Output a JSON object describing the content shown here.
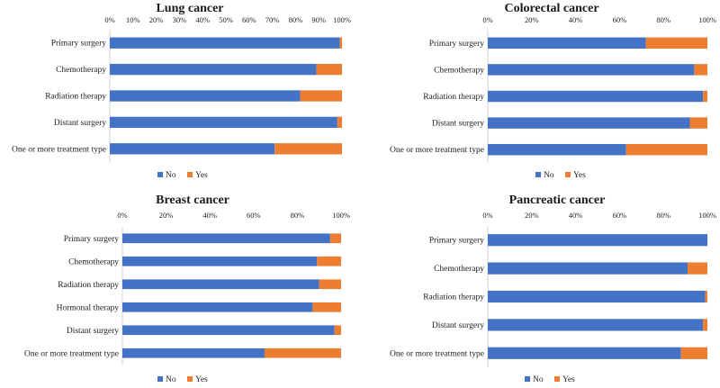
{
  "colors": {
    "no": "#4472C4",
    "yes": "#ED7D31"
  },
  "chart_data": [
    {
      "type": "bar",
      "orientation": "horizontal",
      "stacked": "percent",
      "title": "Lung cancer",
      "xlim": [
        0,
        100
      ],
      "xticks": [
        "0%",
        "10%",
        "20%",
        "30%",
        "40%",
        "50%",
        "60%",
        "70%",
        "80%",
        "90%",
        "100%"
      ],
      "categories": [
        "Primary surgery",
        "Chemotherapy",
        "Radiation therapy",
        "Distant surgery",
        "One or more treatment type"
      ],
      "series": [
        {
          "name": "No",
          "values": [
            99,
            89,
            82,
            98,
            71
          ]
        },
        {
          "name": "Yes",
          "values": [
            1,
            11,
            18,
            2,
            29
          ]
        }
      ],
      "legend": "bottom"
    },
    {
      "type": "bar",
      "orientation": "horizontal",
      "stacked": "percent",
      "title": "Colorectal cancer",
      "xlim": [
        0,
        100
      ],
      "xticks": [
        "0%",
        "20%",
        "40%",
        "60%",
        "80%",
        "100%"
      ],
      "categories": [
        "Primary surgery",
        "Chemotherapy",
        "Radiation therapy",
        "Distant surgery",
        "One or more treatment type"
      ],
      "series": [
        {
          "name": "No",
          "values": [
            72,
            94,
            98,
            92,
            63
          ]
        },
        {
          "name": "Yes",
          "values": [
            28,
            6,
            2,
            8,
            37
          ]
        }
      ],
      "legend": "bottom"
    },
    {
      "type": "bar",
      "orientation": "horizontal",
      "stacked": "percent",
      "title": "Breast cancer",
      "xlim": [
        0,
        100
      ],
      "xticks": [
        "0%",
        "20%",
        "40%",
        "60%",
        "80%",
        "100%"
      ],
      "categories": [
        "Primary surgery",
        "Chemotherapy",
        "Radiation therapy",
        "Hormonal therapy",
        "Distant surgery",
        "One or more treatment type"
      ],
      "series": [
        {
          "name": "No",
          "values": [
            95,
            89,
            90,
            87,
            97,
            65
          ]
        },
        {
          "name": "Yes",
          "values": [
            5,
            11,
            10,
            13,
            3,
            35
          ]
        }
      ],
      "legend": "bottom"
    },
    {
      "type": "bar",
      "orientation": "horizontal",
      "stacked": "percent",
      "title": "Pancreatic cancer",
      "xlim": [
        0,
        100
      ],
      "xticks": [
        "0%",
        "20%",
        "40%",
        "60%",
        "80%",
        "100%"
      ],
      "categories": [
        "Primary surgery",
        "Chemotherapy",
        "Radiation therapy",
        "Distant surgery",
        "One or more treatment type"
      ],
      "series": [
        {
          "name": "No",
          "values": [
            100,
            91,
            99,
            98,
            88
          ]
        },
        {
          "name": "Yes",
          "values": [
            0,
            9,
            1,
            2,
            12
          ]
        }
      ],
      "legend": "bottom"
    }
  ]
}
